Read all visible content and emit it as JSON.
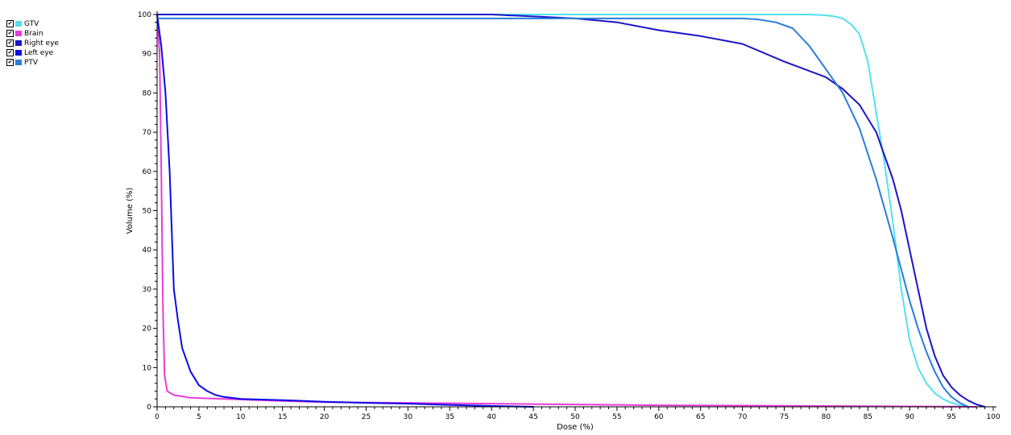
{
  "chart_data": {
    "type": "line",
    "xlabel": "Dose (%)",
    "ylabel": "Volume (%)",
    "xlim": [
      0,
      100
    ],
    "ylim": [
      0,
      100
    ],
    "xticks": [
      "0",
      "5",
      "10",
      "15",
      "20",
      "25",
      "30",
      "35",
      "40",
      "45",
      "50",
      "55",
      "60",
      "65",
      "70",
      "75",
      "80",
      "85",
      "90",
      "95",
      "100"
    ],
    "yticks": [
      "0",
      "10",
      "20",
      "30",
      "40",
      "50",
      "60",
      "70",
      "80",
      "90",
      "100"
    ],
    "grid": false,
    "legend_position": "top-left",
    "series": [
      {
        "name": "GTV",
        "color": "#55e0f0",
        "checked": true,
        "x": [
          0,
          10,
          20,
          30,
          40,
          50,
          60,
          70,
          75,
          78,
          80,
          81,
          82,
          83,
          84,
          85,
          86,
          87,
          88,
          89,
          90,
          91,
          92,
          93,
          94,
          95,
          96,
          97
        ],
        "y": [
          100,
          100,
          100,
          100,
          100,
          100,
          100,
          100,
          100,
          100,
          99.8,
          99.5,
          99,
          97.5,
          95,
          88,
          75,
          62,
          47,
          30,
          17,
          10,
          6,
          3.5,
          2,
          1,
          0.4,
          0
        ]
      },
      {
        "name": "Brain",
        "color": "#e83cd8",
        "checked": true,
        "x": [
          0,
          0.3,
          0.5,
          0.7,
          0.9,
          1.2,
          2,
          4,
          8,
          15,
          20,
          30,
          40,
          50,
          60,
          70,
          80,
          90,
          98
        ],
        "y": [
          100,
          90,
          60,
          25,
          8,
          4,
          3,
          2.3,
          2,
          1.5,
          1.2,
          1,
          0.8,
          0.6,
          0.4,
          0.3,
          0.2,
          0.1,
          0
        ]
      },
      {
        "name": "Right eye",
        "color": "#1a14c8",
        "checked": true,
        "x": [
          0,
          5,
          10,
          20,
          30,
          40,
          45,
          50,
          55,
          60,
          65,
          70,
          75,
          80,
          82,
          84,
          86,
          88,
          89,
          90,
          91,
          92,
          93,
          94,
          95,
          96,
          97,
          98,
          99
        ],
        "y": [
          100,
          100,
          100,
          100,
          100,
          100,
          99.5,
          99,
          98,
          96,
          94.5,
          92.5,
          88,
          84,
          81,
          77,
          70,
          58,
          50,
          40,
          30,
          20,
          13,
          8,
          5,
          3,
          1.6,
          0.6,
          0
        ]
      },
      {
        "name": "Left eye",
        "color": "#0a0ae6",
        "checked": true,
        "x": [
          0,
          0.5,
          1,
          1.5,
          2,
          2.5,
          3,
          4,
          5,
          6,
          7,
          8,
          10,
          15,
          20,
          25,
          30,
          35,
          40,
          45
        ],
        "y": [
          100,
          92,
          80,
          60,
          30,
          22,
          15,
          9,
          5.5,
          4,
          3,
          2.5,
          2,
          1.7,
          1.3,
          1,
          0.8,
          0.5,
          0.2,
          0
        ]
      },
      {
        "name": "PTV",
        "color": "#2a7cdc",
        "checked": true,
        "x": [
          0,
          1,
          10,
          20,
          30,
          40,
          50,
          60,
          70,
          72,
          74,
          76,
          78,
          80,
          82,
          84,
          86,
          88,
          89,
          90,
          91,
          92,
          93,
          94,
          95,
          96,
          97
        ],
        "y": [
          99,
          99,
          99,
          99,
          99,
          99,
          99,
          99,
          99,
          98.7,
          98,
          96.5,
          92,
          86,
          80,
          71,
          58,
          43,
          35,
          27,
          20,
          14,
          9,
          5,
          2.5,
          1,
          0
        ]
      }
    ]
  },
  "ui": {
    "check_glyph": "✔"
  }
}
